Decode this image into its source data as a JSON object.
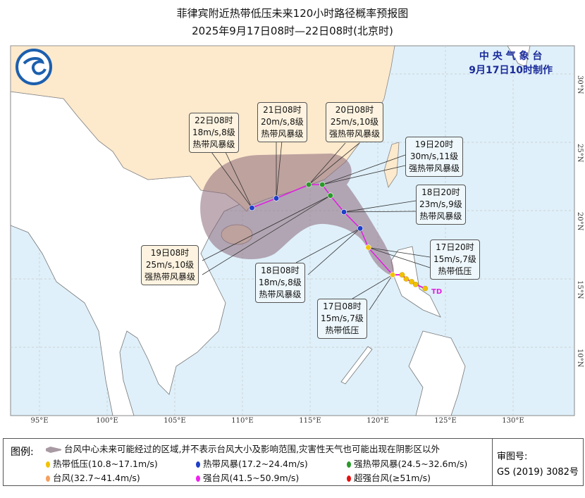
{
  "header": {
    "title": "菲律宾附近热带低压未来120小时路径概率预报图",
    "subtitle": "2025年9月17日08时—22日08时(北京时)"
  },
  "agency": {
    "name": "中 央 气 象 台",
    "issued": "9月17日10时制作"
  },
  "colors": {
    "ocean": "#dff0fa",
    "china_land": "#fde9cc",
    "other_land": "#ffffff",
    "cone": "#8a6878",
    "track": "#e01ee0",
    "TD": "#f2c200",
    "TS": "#1f3fc8",
    "STS": "#2a9a2a",
    "TY": "#f5a060",
    "STY": "#f020f0",
    "SuperTY": "#e81010"
  },
  "axes": {
    "longitudes": [
      "95°E",
      "100°E",
      "105°E",
      "110°E",
      "115°E",
      "120°E",
      "125°E",
      "130°E"
    ],
    "latitudes": [
      "30°N",
      "25°N",
      "20°N",
      "15°N",
      "10°N"
    ]
  },
  "track": {
    "past": [
      {
        "lon": 123.5,
        "lat": 14.3
      },
      {
        "lon": 122.8,
        "lat": 14.6
      },
      {
        "lon": 122.5,
        "lat": 14.8
      },
      {
        "lon": 122.1,
        "lat": 15.0
      },
      {
        "lon": 121.8,
        "lat": 15.3
      }
    ],
    "current_label": "TD",
    "forecast": [
      {
        "time": "17日08时",
        "wind": "15m/s,7级",
        "grade": "热带低压",
        "cat": "TD",
        "lon": 121.1,
        "lat": 15.3
      },
      {
        "time": "17日20时",
        "wind": "15m/s,7级",
        "grade": "热带低压",
        "cat": "TD",
        "lon": 119.3,
        "lat": 17.3
      },
      {
        "time": "18日08时",
        "wind": "18m/s,8级",
        "grade": "热带风暴级",
        "cat": "TS",
        "lon": 118.7,
        "lat": 18.7
      },
      {
        "time": "18日20时",
        "wind": "23m/s,9级",
        "grade": "热带风暴级",
        "cat": "TS",
        "lon": 117.5,
        "lat": 19.9
      },
      {
        "time": "19日08时",
        "wind": "25m/s,10级",
        "grade": "强热带风暴级",
        "cat": "STS",
        "lon": 116.5,
        "lat": 21.1
      },
      {
        "time": "19日20时",
        "wind": "30m/s,11级",
        "grade": "强热带风暴级",
        "cat": "STS",
        "lon": 115.9,
        "lat": 21.9
      },
      {
        "time": "20日08时",
        "wind": "25m/s,10级",
        "grade": "强热带风暴级",
        "cat": "STS",
        "lon": 114.9,
        "lat": 21.9
      },
      {
        "time": "21日08时",
        "wind": "20m/s,8级",
        "grade": "热带风暴级",
        "cat": "TS",
        "lon": 112.5,
        "lat": 20.9
      },
      {
        "time": "22日08时",
        "wind": "18m/s,8级",
        "grade": "热带风暴级",
        "cat": "TS",
        "lon": 110.7,
        "lat": 20.2
      }
    ]
  },
  "legend": {
    "title": "图例:",
    "cone": "台风中心未来可能经过的区域,并不表示台风大小及影响范围,灾害性天气也可能出现在阴影区以外",
    "items": [
      {
        "label": "热带低压(10.8~17.1m/s)",
        "color": "#f2c200"
      },
      {
        "label": "热带风暴(17.2~24.4m/s)",
        "color": "#1f3fc8"
      },
      {
        "label": "强热带风暴(24.5~32.6m/s)",
        "color": "#2a9a2a"
      },
      {
        "label": "台风(32.7~41.4m/s)",
        "color": "#f5a060"
      },
      {
        "label": "强台风(41.5~50.9m/s)",
        "color": "#f020f0"
      },
      {
        "label": "超强台风(≥51m/s)",
        "color": "#e81010"
      }
    ],
    "review_label": "审图号:",
    "review_no": "GS (2019) 3082号"
  }
}
